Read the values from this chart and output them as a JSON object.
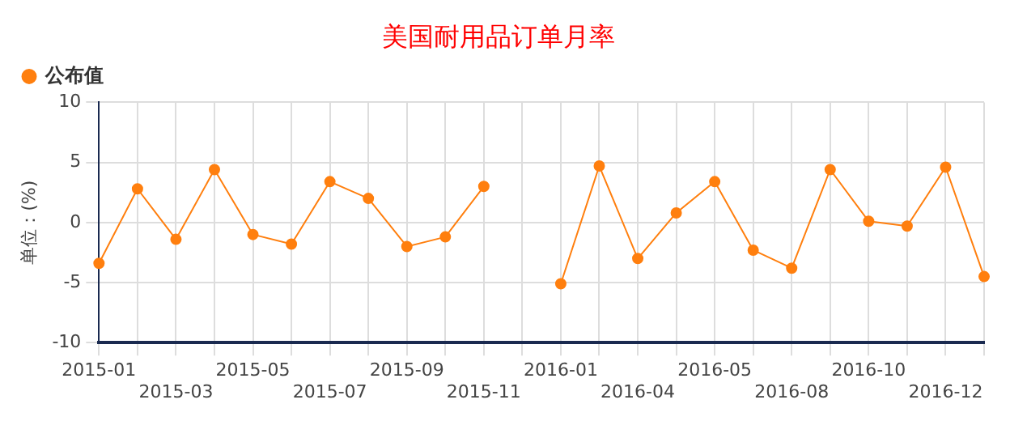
{
  "chart_data": {
    "type": "line",
    "title": "美国耐用品订单月率",
    "ylabel": "单位：(%)",
    "categories": [
      "2015-01",
      null,
      "2015-03",
      null,
      "2015-05",
      null,
      "2015-07",
      null,
      "2015-09",
      null,
      "2015-11",
      null,
      "2016-01",
      null,
      "2016-04",
      null,
      "2016-05",
      null,
      "2016-08",
      null,
      "2016-10",
      null,
      "2016-12",
      null
    ],
    "series": [
      {
        "name": "公布值",
        "color": "#ff7f0e",
        "values": [
          -3.4,
          2.8,
          -1.4,
          4.4,
          -1.0,
          -1.8,
          3.4,
          2.0,
          -2.0,
          -1.2,
          3.0,
          null,
          -5.1,
          4.7,
          -3.0,
          0.8,
          3.4,
          -2.3,
          -3.8,
          4.4,
          0.1,
          -0.3,
          4.6,
          -4.5
        ]
      }
    ],
    "ylim": [
      -10,
      10
    ],
    "yticks": [
      -10,
      -5,
      0,
      5,
      10
    ],
    "grid": true,
    "legend": "top",
    "marker": "circle",
    "line_style": "solid"
  }
}
